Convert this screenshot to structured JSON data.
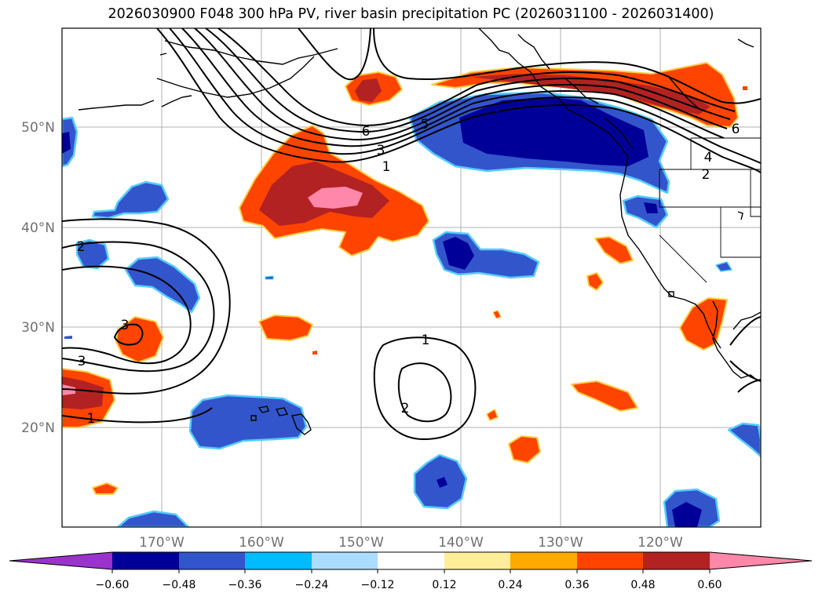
{
  "title": "2026030900 F048 300 hPa PV, river basin precipitation PC (2026031100 - 2026031400)",
  "map": {
    "lat_ticks": [
      "50°N",
      "40°N",
      "30°N",
      "20°N"
    ],
    "lon_ticks": [
      "170°W",
      "160°W",
      "150°W",
      "140°W",
      "130°W",
      "120°W"
    ],
    "contour_labels": [
      "6",
      "5",
      "3",
      "1",
      "2",
      "3",
      "1",
      "1",
      "2",
      "6",
      "4",
      "2",
      "3"
    ]
  },
  "colorbar": {
    "ticks": [
      "−0.60",
      "−0.48",
      "−0.36",
      "−0.24",
      "−0.12",
      "0.12",
      "0.24",
      "0.36",
      "0.48",
      "0.60"
    ],
    "colors": [
      "#9933cc",
      "#000099",
      "#3355cc",
      "#00bbff",
      "#aaddff",
      "#ffffff",
      "#ffee99",
      "#ffaa00",
      "#ff4400",
      "#b22222",
      "#ff88aa"
    ]
  }
}
